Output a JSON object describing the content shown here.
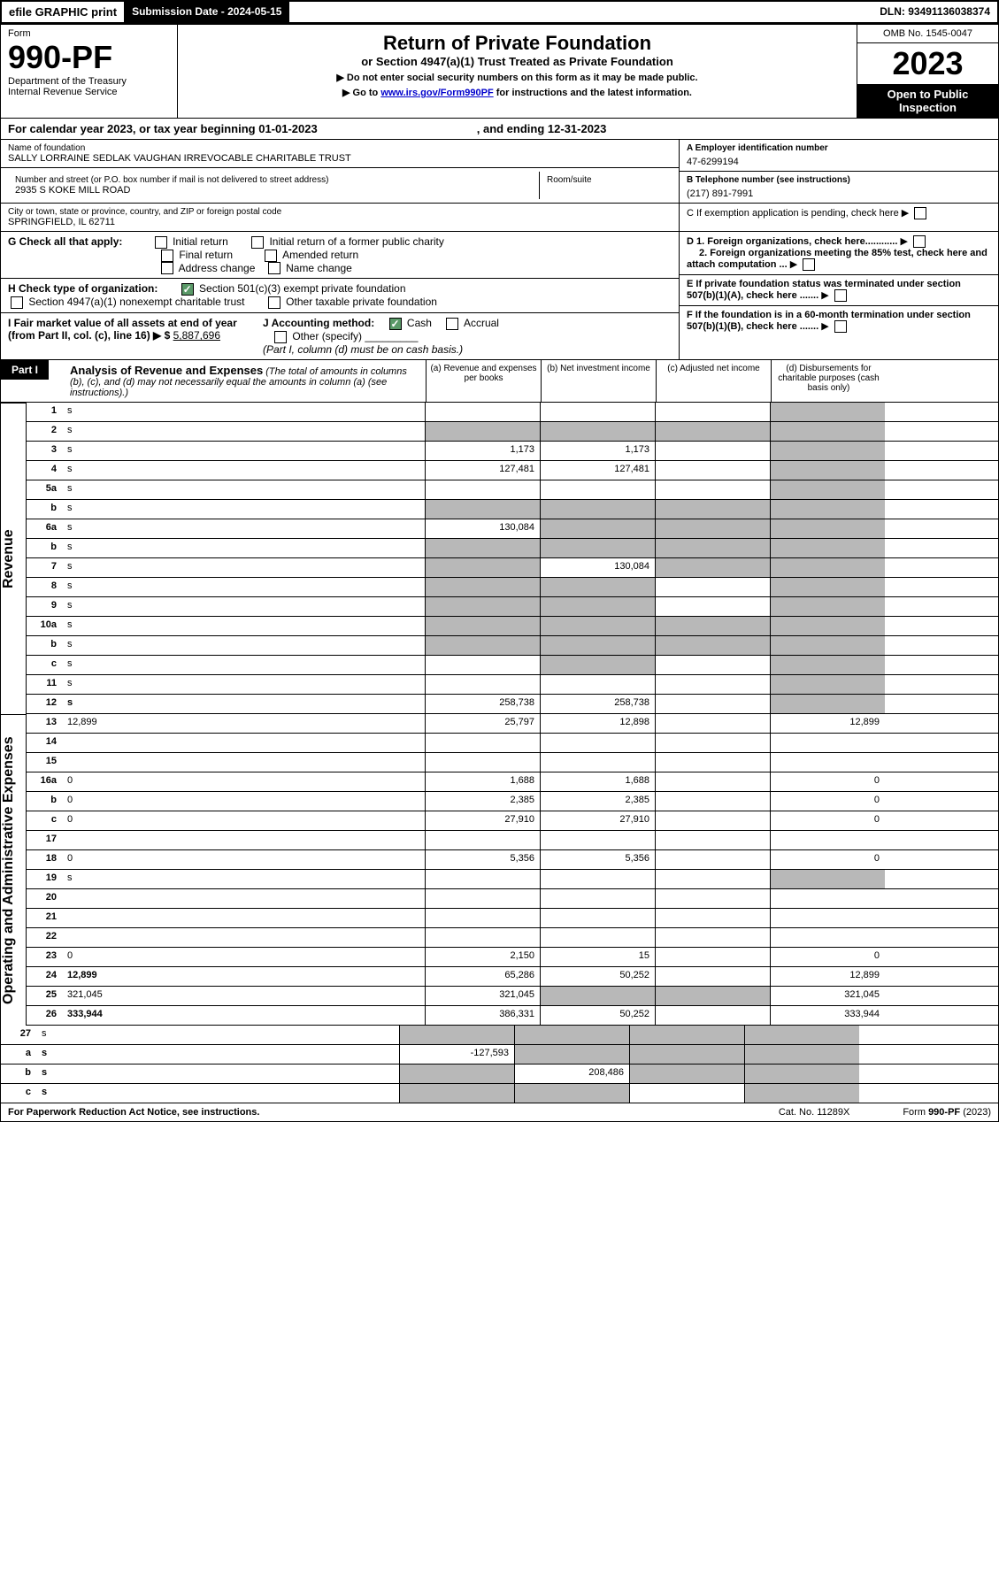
{
  "header": {
    "efile": "efile GRAPHIC print",
    "submission": "Submission Date - 2024-05-15",
    "dln": "DLN: 93491136038374"
  },
  "form": {
    "form_label": "Form",
    "number": "990-PF",
    "dept": "Department of the Treasury",
    "irs": "Internal Revenue Service",
    "title": "Return of Private Foundation",
    "subtitle": "or Section 4947(a)(1) Trust Treated as Private Foundation",
    "inst1": "▶ Do not enter social security numbers on this form as it may be made public.",
    "inst2_prefix": "▶ Go to ",
    "inst2_link": "www.irs.gov/Form990PF",
    "inst2_suffix": " for instructions and the latest information.",
    "omb": "OMB No. 1545-0047",
    "year": "2023",
    "inspection": "Open to Public Inspection"
  },
  "calendar": {
    "text": "For calendar year 2023, or tax year beginning 01-01-2023",
    "ending": ", and ending 12-31-2023"
  },
  "foundation": {
    "name_label": "Name of foundation",
    "name": "SALLY LORRAINE SEDLAK VAUGHAN IRREVOCABLE CHARITABLE TRUST",
    "address_label": "Number and street (or P.O. box number if mail is not delivered to street address)",
    "room_label": "Room/suite",
    "address": "2935 S KOKE MILL ROAD",
    "city_label": "City or town, state or province, country, and ZIP or foreign postal code",
    "city": "SPRINGFIELD, IL  62711",
    "ein_label": "A Employer identification number",
    "ein": "47-6299194",
    "phone_label": "B Telephone number (see instructions)",
    "phone": "(217) 891-7991",
    "c_label": "C If exemption application is pending, check here",
    "d1_label": "D 1. Foreign organizations, check here............",
    "d2_label": "2. Foreign organizations meeting the 85% test, check here and attach computation ...",
    "e_label": "E  If private foundation status was terminated under section 507(b)(1)(A), check here .......",
    "f_label": "F  If the foundation is in a 60-month termination under section 507(b)(1)(B), check here .......",
    "g_label": "G Check all that apply:",
    "g_initial": "Initial return",
    "g_initial_former": "Initial return of a former public charity",
    "g_final": "Final return",
    "g_amended": "Amended return",
    "g_address": "Address change",
    "g_name": "Name change",
    "h_label": "H Check type of organization:",
    "h_501c3": "Section 501(c)(3) exempt private foundation",
    "h_4947": "Section 4947(a)(1) nonexempt charitable trust",
    "h_other": "Other taxable private foundation",
    "i_label": "I Fair market value of all assets at end of year (from Part II, col. (c), line 16) ▶ $",
    "i_value": "5,887,696",
    "j_label": "J Accounting method:",
    "j_cash": "Cash",
    "j_accrual": "Accrual",
    "j_other": "Other (specify)",
    "j_note": "(Part I, column (d) must be on cash basis.)"
  },
  "part1": {
    "label": "Part I",
    "title": "Analysis of Revenue and Expenses",
    "desc": "(The total of amounts in columns (b), (c), and (d) may not necessarily equal the amounts in column (a) (see instructions).)",
    "col_a": "(a)    Revenue and expenses per books",
    "col_b": "(b)    Net investment income",
    "col_c": "(c)   Adjusted net income",
    "col_d": "(d)   Disbursements for charitable purposes (cash basis only)"
  },
  "sections": {
    "revenue": "Revenue",
    "expenses": "Operating and Administrative Expenses"
  },
  "rows": [
    {
      "n": "1",
      "d": "s",
      "a": "",
      "b": "",
      "c": ""
    },
    {
      "n": "2",
      "d": "s",
      "a": "s",
      "b": "s",
      "c": "s"
    },
    {
      "n": "3",
      "d": "s",
      "a": "1,173",
      "b": "1,173",
      "c": ""
    },
    {
      "n": "4",
      "d": "s",
      "a": "127,481",
      "b": "127,481",
      "c": ""
    },
    {
      "n": "5a",
      "d": "s",
      "a": "",
      "b": "",
      "c": ""
    },
    {
      "n": "b",
      "d": "s",
      "a": "s",
      "b": "s",
      "c": "s"
    },
    {
      "n": "6a",
      "d": "s",
      "a": "130,084",
      "b": "s",
      "c": "s"
    },
    {
      "n": "b",
      "d": "s",
      "a": "s",
      "b": "s",
      "c": "s"
    },
    {
      "n": "7",
      "d": "s",
      "a": "s",
      "b": "130,084",
      "c": "s"
    },
    {
      "n": "8",
      "d": "s",
      "a": "s",
      "b": "s",
      "c": ""
    },
    {
      "n": "9",
      "d": "s",
      "a": "s",
      "b": "s",
      "c": ""
    },
    {
      "n": "10a",
      "d": "s",
      "a": "s",
      "b": "s",
      "c": "s"
    },
    {
      "n": "b",
      "d": "s",
      "a": "s",
      "b": "s",
      "c": "s"
    },
    {
      "n": "c",
      "d": "s",
      "a": "",
      "b": "s",
      "c": ""
    },
    {
      "n": "11",
      "d": "s",
      "a": "",
      "b": "",
      "c": ""
    },
    {
      "n": "12",
      "d": "s",
      "a": "258,738",
      "b": "258,738",
      "c": "",
      "bold": true
    }
  ],
  "exp_rows": [
    {
      "n": "13",
      "d": "12,899",
      "a": "25,797",
      "b": "12,898",
      "c": ""
    },
    {
      "n": "14",
      "d": "",
      "a": "",
      "b": "",
      "c": ""
    },
    {
      "n": "15",
      "d": "",
      "a": "",
      "b": "",
      "c": ""
    },
    {
      "n": "16a",
      "d": "0",
      "a": "1,688",
      "b": "1,688",
      "c": ""
    },
    {
      "n": "b",
      "d": "0",
      "a": "2,385",
      "b": "2,385",
      "c": ""
    },
    {
      "n": "c",
      "d": "0",
      "a": "27,910",
      "b": "27,910",
      "c": ""
    },
    {
      "n": "17",
      "d": "",
      "a": "",
      "b": "",
      "c": ""
    },
    {
      "n": "18",
      "d": "0",
      "a": "5,356",
      "b": "5,356",
      "c": ""
    },
    {
      "n": "19",
      "d": "s",
      "a": "",
      "b": "",
      "c": ""
    },
    {
      "n": "20",
      "d": "",
      "a": "",
      "b": "",
      "c": ""
    },
    {
      "n": "21",
      "d": "",
      "a": "",
      "b": "",
      "c": ""
    },
    {
      "n": "22",
      "d": "",
      "a": "",
      "b": "",
      "c": ""
    },
    {
      "n": "23",
      "d": "0",
      "a": "2,150",
      "b": "15",
      "c": ""
    },
    {
      "n": "24",
      "d": "12,899",
      "a": "65,286",
      "b": "50,252",
      "c": "",
      "bold": true
    },
    {
      "n": "25",
      "d": "321,045",
      "a": "321,045",
      "b": "s",
      "c": "s"
    },
    {
      "n": "26",
      "d": "333,944",
      "a": "386,331",
      "b": "50,252",
      "c": "",
      "bold": true
    }
  ],
  "bottom_rows": [
    {
      "n": "27",
      "d": "s",
      "a": "s",
      "b": "s",
      "c": "s"
    },
    {
      "n": "a",
      "d": "s",
      "a": "-127,593",
      "b": "s",
      "c": "s",
      "bold": true
    },
    {
      "n": "b",
      "d": "s",
      "a": "s",
      "b": "208,486",
      "c": "s",
      "bold": true
    },
    {
      "n": "c",
      "d": "s",
      "a": "s",
      "b": "s",
      "c": "",
      "bold": true
    }
  ],
  "footer": {
    "paperwork": "For Paperwork Reduction Act Notice, see instructions.",
    "cat": "Cat. No. 11289X",
    "form": "Form 990-PF (2023)"
  }
}
